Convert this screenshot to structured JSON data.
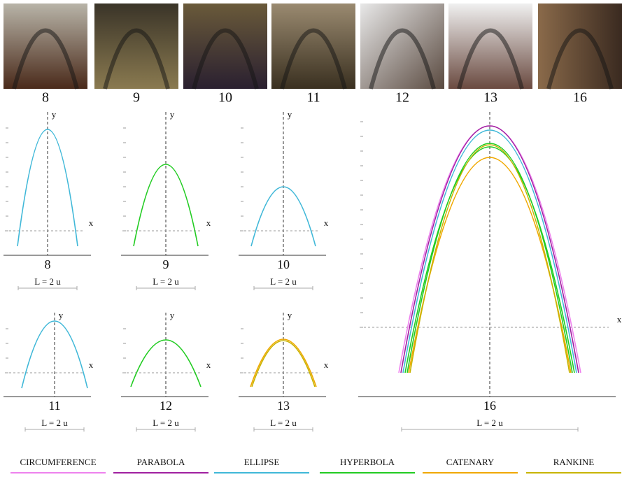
{
  "photos": [
    {
      "label": "8"
    },
    {
      "label": "9"
    },
    {
      "label": "10"
    },
    {
      "label": "11"
    },
    {
      "label": "12"
    },
    {
      "label": "13"
    },
    {
      "label": "16"
    }
  ],
  "plots": [
    {
      "label": "8",
      "y_axis": "y",
      "x_axis": "x",
      "scale": "L = 2 u"
    },
    {
      "label": "9",
      "y_axis": "y",
      "x_axis": "x",
      "scale": "L = 2 u"
    },
    {
      "label": "10",
      "y_axis": "y",
      "x_axis": "x",
      "scale": "L = 2 u"
    },
    {
      "label": "11",
      "y_axis": "y",
      "x_axis": "x",
      "scale": "L = 2 u"
    },
    {
      "label": "12",
      "y_axis": "y",
      "x_axis": "x",
      "scale": "L = 2 u"
    },
    {
      "label": "13",
      "y_axis": "y",
      "x_axis": "x",
      "scale": "L = 2 u"
    },
    {
      "label": "16",
      "x_axis": "x",
      "scale": "L = 2 u"
    }
  ],
  "legend": [
    {
      "name": "CIRCUMFERENCE",
      "color": "#ee82ee"
    },
    {
      "name": "PARABOLA",
      "color": "#a020a0"
    },
    {
      "name": "ELLIPSE",
      "color": "#40b8d8"
    },
    {
      "name": "HYPERBOLA",
      "color": "#22cc22"
    },
    {
      "name": "CATENARY",
      "color": "#f0a800"
    },
    {
      "name": "RANKINE",
      "color": "#c8b400"
    }
  ]
}
